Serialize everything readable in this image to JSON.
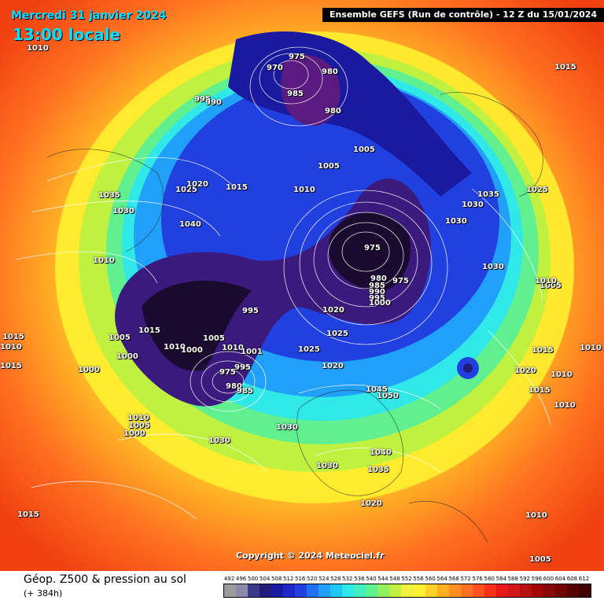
{
  "header": {
    "date": "Mercredi 31 janvier 2024",
    "time": "13:00 locale",
    "run": "Ensemble GEFS  (Run de contrôle)  -  12 Z du 15/01/2024"
  },
  "copyright": "Copyright © 2024 Meteociel.fr",
  "footer": {
    "title": "Géop. Z500 & pression au sol",
    "subtitle": "(+ 384h)"
  },
  "legend": {
    "values": [
      "492",
      "496",
      "500",
      "504",
      "508",
      "512",
      "516",
      "520",
      "524",
      "528",
      "532",
      "536",
      "540",
      "544",
      "548",
      "552",
      "556",
      "560",
      "564",
      "568",
      "572",
      "576",
      "580",
      "584",
      "588",
      "592",
      "596",
      "600",
      "604",
      "608",
      "612"
    ],
    "colors": [
      "#9b9b9b",
      "#8a8aa8",
      "#3a3a8c",
      "#201a78",
      "#1a1aa0",
      "#1e28c8",
      "#2040e0",
      "#2070f0",
      "#20a0f8",
      "#20c8f8",
      "#30e8e8",
      "#40f0c0",
      "#60f090",
      "#90f060",
      "#c0f040",
      "#f0f040",
      "#fff030",
      "#ffd028",
      "#ffb020",
      "#ff9020",
      "#ff7020",
      "#ff5020",
      "#f83018",
      "#e81818",
      "#d01818",
      "#b81010",
      "#a00808",
      "#880808",
      "#700404",
      "#580000",
      "#400000"
    ]
  },
  "pressure_labels": [
    "1010",
    "1035",
    "1030",
    "1025",
    "1020",
    "1015",
    "1040",
    "1010",
    "1005",
    "1000",
    "995",
    "990",
    "975",
    "970",
    "980",
    "985",
    "980",
    "1005",
    "1010",
    "1015",
    "1005",
    "1035",
    "1030",
    "1025",
    "1030",
    "1030",
    "975",
    "980",
    "985",
    "990",
    "995",
    "1000",
    "975",
    "1010",
    "1005",
    "1000",
    "1020",
    "1025",
    "1010",
    "995",
    "1001",
    "995",
    "975",
    "980",
    "985",
    "1025",
    "1020",
    "1045",
    "1050",
    "1015",
    "1020",
    "1015",
    "1010",
    "1010",
    "1010",
    "1040",
    "1030",
    "1035",
    "1020",
    "1030",
    "1015",
    "1010",
    "1000",
    "1005",
    "1010",
    "1005",
    "1000",
    "1030",
    "1005",
    "1015",
    "1010",
    "1015",
    "1010",
    "1015"
  ]
}
